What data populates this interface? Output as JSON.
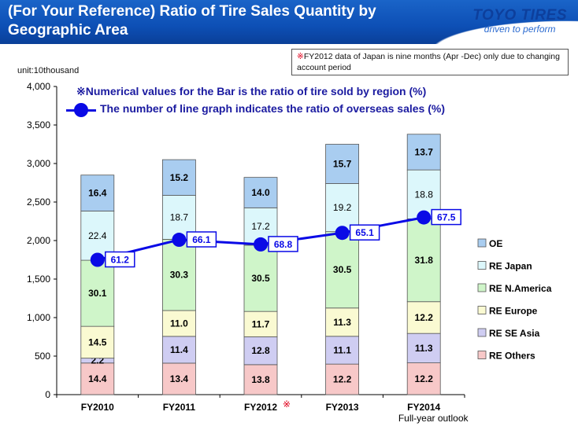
{
  "header": {
    "title": "(For Your Reference)  Ratio of Tire Sales Quantity by Geographic Area",
    "logo_brand": "TOYO TIRES",
    "logo_tagline": "driven to perform"
  },
  "note": {
    "mark": "※",
    "text": "FY2012 data of Japan is nine months (Apr -Dec) only due to changing account period"
  },
  "unit_label": "unit:10thousand",
  "explain": {
    "bar_note": "※Numerical values for the Bar  is the ratio of tire sold by region (%)",
    "line_note": "The number of line graph indicates  the ratio of overseas sales (%)"
  },
  "chart_data": {
    "type": "bar",
    "stacked": true,
    "categories": [
      "FY2010",
      "FY2011",
      "FY2012",
      "FY2013",
      "FY2014"
    ],
    "category_sublabels": [
      "",
      "",
      "※",
      "",
      "Full-year outlook"
    ],
    "ylim": [
      0,
      4000
    ],
    "yticks": [
      0,
      500,
      1000,
      1500,
      2000,
      2500,
      3000,
      3500,
      4000
    ],
    "ytick_labels": [
      "0",
      "500",
      "1,000",
      "1,500",
      "2,000",
      "2,500",
      "3,000",
      "3,500",
      "4,000"
    ],
    "totals": [
      2850,
      3050,
      2820,
      3250,
      3380
    ],
    "series": [
      {
        "name": "RE Others",
        "color": "#f7c8c8",
        "shares": [
          14.4,
          13.4,
          13.8,
          12.2,
          12.2
        ],
        "labels": [
          "14.4",
          "13.4",
          "13.8",
          "12.2",
          "12.2"
        ]
      },
      {
        "name": "RE SE Asia",
        "color": "#cfcdf2",
        "shares": [
          2.2,
          11.4,
          12.8,
          11.1,
          11.3
        ],
        "labels": [
          "2.2",
          "11.4",
          "12.8",
          "11.1",
          "11.3"
        ]
      },
      {
        "name": "RE Europe",
        "color": "#fafad2",
        "shares": [
          14.5,
          11.0,
          11.7,
          11.3,
          12.2
        ],
        "labels": [
          "14.5",
          "11.0",
          "11.7",
          "11.3",
          "12.2"
        ]
      },
      {
        "name": "RE N.America",
        "color": "#cff5c9",
        "shares": [
          30.1,
          30.3,
          30.5,
          30.5,
          31.8
        ],
        "labels": [
          "30.1",
          "30.3",
          "30.5",
          "30.5",
          "31.8"
        ]
      },
      {
        "name": "RE Japan",
        "color": "#dcf7fb",
        "shares": [
          22.4,
          18.7,
          17.2,
          19.2,
          18.8
        ],
        "labels": [
          "22.4",
          "18.7",
          "17.2",
          "19.2",
          "18.8"
        ]
      },
      {
        "name": "OE",
        "color": "#a9cdf0",
        "shares": [
          16.4,
          15.2,
          14.0,
          15.7,
          13.7
        ],
        "labels": [
          "16.4",
          "15.2",
          "14.0",
          "15.7",
          "13.7"
        ]
      }
    ],
    "line": {
      "values": [
        1750,
        2010,
        1950,
        2100,
        2300
      ],
      "labels": [
        "61.2",
        "66.1",
        "68.8",
        "65.1",
        "67.5"
      ],
      "color": "#0a0ae6"
    },
    "legend_placement": "right",
    "grid": false
  }
}
